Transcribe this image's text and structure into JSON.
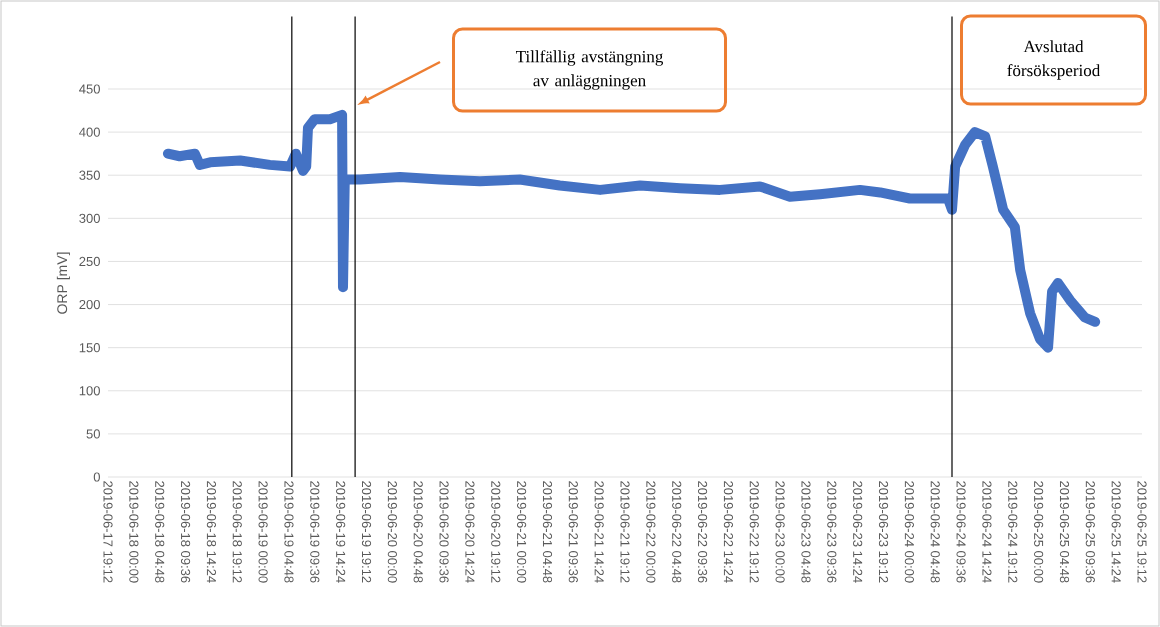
{
  "chart_data": {
    "type": "line",
    "ylabel": "ORP [mV]",
    "annotations": [
      "Tillfällig avstängning av anläggningen",
      "Avslutad försöksperiod"
    ],
    "x": [
      "2019-06-18T06:20",
      "2019-06-18T08:30",
      "2019-06-18T11:20",
      "2019-06-18T12:15",
      "2019-06-18T14:10",
      "2019-06-18T19:45",
      "2019-06-19T01:15",
      "2019-06-19T05:00",
      "2019-06-19T06:05",
      "2019-06-19T07:25",
      "2019-06-19T08:00",
      "2019-06-19T08:20",
      "2019-06-19T09:35",
      "2019-06-19T12:25",
      "2019-06-19T14:40",
      "2019-06-19T14:50",
      "2019-06-19T15:10",
      "2019-06-19T18:00",
      "2019-06-20T01:25",
      "2019-06-20T08:50",
      "2019-06-20T16:15",
      "2019-06-20T23:40",
      "2019-06-21T07:05",
      "2019-06-21T14:35",
      "2019-06-21T22:00",
      "2019-06-22T05:25",
      "2019-06-22T12:50",
      "2019-06-22T20:15",
      "2019-06-23T01:50",
      "2019-06-23T07:25",
      "2019-06-23T14:50",
      "2019-06-23T18:35",
      "2019-06-24T00:05",
      "2019-06-24T07:10",
      "2019-06-24T07:55",
      "2019-06-24T08:30",
      "2019-06-24T10:20",
      "2019-06-24T12:10",
      "2019-06-24T14:05",
      "2019-06-24T15:30",
      "2019-06-24T17:25",
      "2019-06-24T19:35",
      "2019-06-24T20:35",
      "2019-06-24T22:25",
      "2019-06-25T00:15",
      "2019-06-25T01:45",
      "2019-06-25T02:30",
      "2019-06-25T03:35",
      "2019-06-25T05:50",
      "2019-06-25T08:35",
      "2019-06-25T10:30"
    ],
    "series": [
      {
        "color": "#4472c4",
        "values": [
          375,
          372,
          375,
          362,
          365,
          367,
          362,
          360,
          375,
          355,
          360,
          405,
          415,
          415,
          420,
          220,
          345,
          345,
          348,
          345,
          343,
          345,
          338,
          333,
          338,
          335,
          333,
          337,
          325,
          328,
          333,
          330,
          323,
          323,
          310,
          360,
          385,
          400,
          395,
          360,
          310,
          290,
          240,
          190,
          160,
          150,
          215,
          225,
          205,
          185,
          180
        ]
      }
    ],
    "line_style": "solid",
    "grid": "y",
    "ylim": [
      0,
      450
    ],
    "yticks": [
      0,
      50,
      100,
      150,
      200,
      250,
      300,
      350,
      400,
      450
    ],
    "xlim": [
      "2019-06-17T19:12",
      "2019-06-25T19:12"
    ],
    "xticks": [
      {
        "value": "2019-06-17T19:12",
        "label": "2019-06-17 19:12"
      },
      {
        "value": "2019-06-18T00:00",
        "label": "2019-06-18 00:00"
      },
      {
        "value": "2019-06-18T04:48",
        "label": "2019-06-18 04:48"
      },
      {
        "value": "2019-06-18T09:36",
        "label": "2019-06-18 09:36"
      },
      {
        "value": "2019-06-18T14:24",
        "label": "2019-06-18 14:24"
      },
      {
        "value": "2019-06-18T19:12",
        "label": "2019-06-18 19:12"
      },
      {
        "value": "2019-06-19T00:00",
        "label": "2019-06-19 00:00"
      },
      {
        "value": "2019-06-19T04:48",
        "label": "2019-06-19 04:48"
      },
      {
        "value": "2019-06-19T09:36",
        "label": "2019-06-19 09:36"
      },
      {
        "value": "2019-06-19T14:24",
        "label": "2019-06-19 14:24"
      },
      {
        "value": "2019-06-19T19:12",
        "label": "2019-06-19 19:12"
      },
      {
        "value": "2019-06-20T00:00",
        "label": "2019-06-20 00:00"
      },
      {
        "value": "2019-06-20T04:48",
        "label": "2019-06-20 04:48"
      },
      {
        "value": "2019-06-20T09:36",
        "label": "2019-06-20 09:36"
      },
      {
        "value": "2019-06-20T14:24",
        "label": "2019-06-20 14:24"
      },
      {
        "value": "2019-06-20T19:12",
        "label": "2019-06-20 19:12"
      },
      {
        "value": "2019-06-21T00:00",
        "label": "2019-06-21 00:00"
      },
      {
        "value": "2019-06-21T04:48",
        "label": "2019-06-21 04:48"
      },
      {
        "value": "2019-06-21T09:36",
        "label": "2019-06-21 09:36"
      },
      {
        "value": "2019-06-21T14:24",
        "label": "2019-06-21 14:24"
      },
      {
        "value": "2019-06-21T19:12",
        "label": "2019-06-21 19:12"
      },
      {
        "value": "2019-06-22T00:00",
        "label": "2019-06-22 00:00"
      },
      {
        "value": "2019-06-22T04:48",
        "label": "2019-06-22 04:48"
      },
      {
        "value": "2019-06-22T09:36",
        "label": "2019-06-22 09:36"
      },
      {
        "value": "2019-06-22T14:24",
        "label": "2019-06-22 14:24"
      },
      {
        "value": "2019-06-22T19:12",
        "label": "2019-06-22 19:12"
      },
      {
        "value": "2019-06-23T00:00",
        "label": "2019-06-23 00:00"
      },
      {
        "value": "2019-06-23T04:48",
        "label": "2019-06-23 04:48"
      },
      {
        "value": "2019-06-23T09:36",
        "label": "2019-06-23 09:36"
      },
      {
        "value": "2019-06-23T14:24",
        "label": "2019-06-23 14:24"
      },
      {
        "value": "2019-06-23T19:12",
        "label": "2019-06-23 19:12"
      },
      {
        "value": "2019-06-24T00:00",
        "label": "2019-06-24 00:00"
      },
      {
        "value": "2019-06-24T04:48",
        "label": "2019-06-24 04:48"
      },
      {
        "value": "2019-06-24T09:36",
        "label": "2019-06-24 09:36"
      },
      {
        "value": "2019-06-24T14:24",
        "label": "2019-06-24 14:24"
      },
      {
        "value": "2019-06-24T19:12",
        "label": "2019-06-24 19:12"
      },
      {
        "value": "2019-06-25T00:00",
        "label": "2019-06-25 00:00"
      },
      {
        "value": "2019-06-25T04:48",
        "label": "2019-06-25 04:48"
      },
      {
        "value": "2019-06-25T09:36",
        "label": "2019-06-25 09:36"
      },
      {
        "value": "2019-06-25T14:24",
        "label": "2019-06-25 14:24"
      },
      {
        "value": "2019-06-25T19:12",
        "label": "2019-06-25 19:12"
      }
    ],
    "ref_lines": [
      {
        "axis": "x",
        "value": "2019-06-19T05:20",
        "color": "#000000"
      },
      {
        "axis": "x",
        "value": "2019-06-19T17:05",
        "color": "#000000"
      },
      {
        "axis": "x",
        "value": "2019-06-24T07:55",
        "color": "#000000"
      }
    ]
  }
}
